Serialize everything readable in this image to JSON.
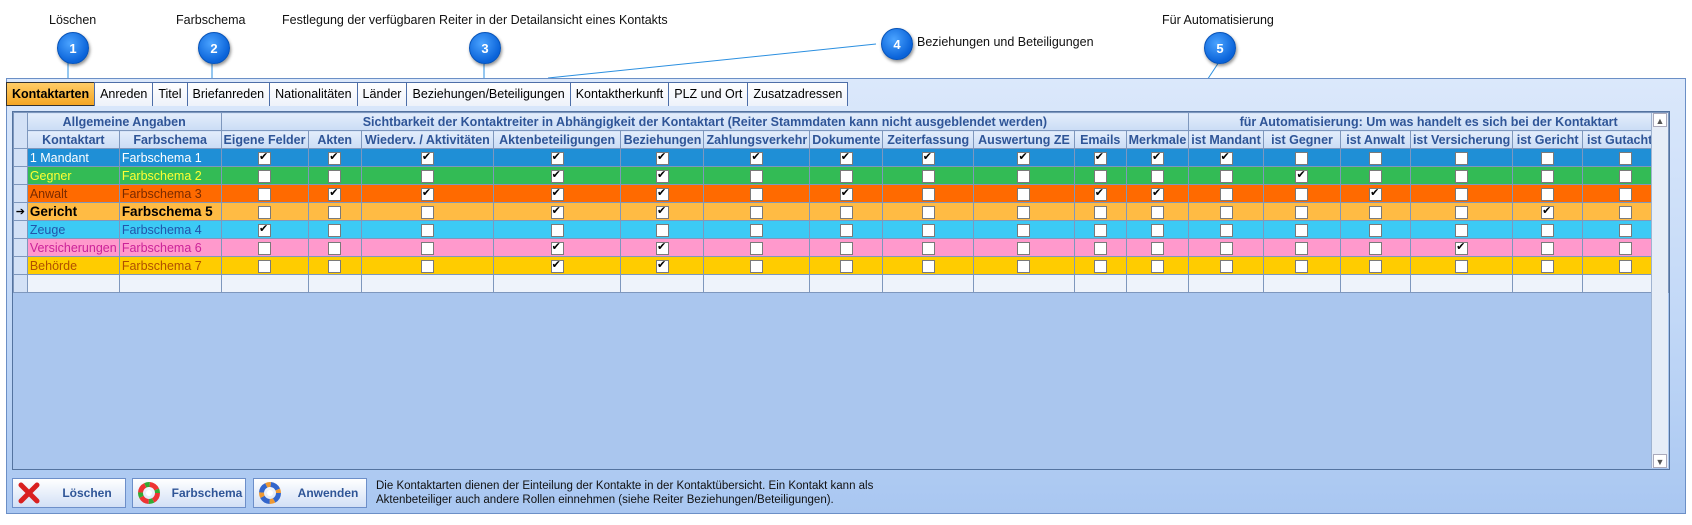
{
  "callouts": {
    "loeschen": "Löschen",
    "farbschema": "Farbschema",
    "reiter": "Festlegung der verfügbaren Reiter in der Detailansicht eines Kontakts",
    "beziehungen": "Beziehungen und Beteiligungen",
    "automatisierung": "Für Automatisierung",
    "badges": [
      "1",
      "2",
      "3",
      "4",
      "5"
    ]
  },
  "tabs": [
    "Kontaktarten",
    "Anreden",
    "Titel",
    "Briefanreden",
    "Nationalitäten",
    "Länder",
    "Beziehungen/Beteiligungen",
    "Kontaktherkunft",
    "PLZ und Ort",
    "Zusatzadressen"
  ],
  "groups": {
    "allgemein": "Allgemeine Angaben",
    "sichtbarkeit": "Sichtbarkeit der Kontaktreiter in Abhängigkeit der Kontaktart (Reiter Stammdaten kann nicht ausgeblendet werden)",
    "automatisierung": "für Automatisierung: Um was handelt es sich bei der Kontaktart"
  },
  "columns": [
    "Kontaktart",
    "Farbschema",
    "Eigene Felder",
    "Akten",
    "Wiederv. / Aktivitäten",
    "Aktenbeteiligungen",
    "Beziehungen",
    "Zahlungsverkehr",
    "Dokumente",
    "Zeiterfassung",
    "Auswertung ZE",
    "Emails",
    "Merkmale",
    "ist Mandant",
    "ist Gegner",
    "ist Anwalt",
    "ist Versicherung",
    "ist Gericht",
    "ist Gutachter"
  ],
  "rows": [
    {
      "kontaktart": "1 Mandant",
      "farbschema": "Farbschema 1",
      "bg": "#1f8fd6",
      "fg": "#ffffff",
      "current": false,
      "checks": [
        1,
        1,
        1,
        1,
        1,
        1,
        1,
        1,
        1,
        1,
        1,
        1,
        0,
        0,
        0,
        0,
        0
      ]
    },
    {
      "kontaktart": "Gegner",
      "farbschema": "Farbschema 2",
      "bg": "#33bb55",
      "fg": "#ffff33",
      "current": false,
      "checks": [
        0,
        0,
        0,
        1,
        1,
        0,
        0,
        0,
        0,
        0,
        0,
        0,
        1,
        0,
        0,
        0,
        0
      ]
    },
    {
      "kontaktart": "Anwalt",
      "farbschema": "Farbschema 3",
      "bg": "#ff6a00",
      "fg": "#7a2a00",
      "current": false,
      "checks": [
        0,
        1,
        1,
        1,
        1,
        0,
        1,
        0,
        0,
        1,
        1,
        0,
        0,
        1,
        0,
        0,
        0
      ]
    },
    {
      "kontaktart": "Gericht",
      "farbschema": "Farbschema 5",
      "bg": "#ffbb44",
      "fg": "#000000",
      "current": true,
      "checks": [
        0,
        0,
        0,
        1,
        1,
        0,
        0,
        0,
        0,
        0,
        0,
        0,
        0,
        0,
        0,
        1,
        0
      ]
    },
    {
      "kontaktart": "Zeuge",
      "farbschema": "Farbschema 4",
      "bg": "#3ccaf5",
      "fg": "#2255aa",
      "current": false,
      "checks": [
        1,
        0,
        0,
        0,
        0,
        0,
        0,
        0,
        0,
        0,
        0,
        0,
        0,
        0,
        0,
        0,
        0
      ]
    },
    {
      "kontaktart": "Versicherungen",
      "farbschema": "Farbschema 6",
      "bg": "#ff99cc",
      "fg": "#cc2299",
      "current": false,
      "checks": [
        0,
        0,
        0,
        1,
        1,
        0,
        0,
        0,
        0,
        0,
        0,
        0,
        0,
        0,
        1,
        0,
        0
      ]
    },
    {
      "kontaktart": "Behörde",
      "farbschema": "Farbschema 7",
      "bg": "#ffcc00",
      "fg": "#b05000",
      "current": false,
      "checks": [
        0,
        0,
        0,
        1,
        1,
        0,
        0,
        0,
        0,
        0,
        0,
        0,
        0,
        0,
        0,
        0,
        0
      ]
    }
  ],
  "buttons": {
    "loeschen": "Löschen",
    "farbschema": "Farbschema",
    "anwenden": "Anwenden"
  },
  "info_line1": "Die Kontaktarten dienen der Einteilung der Kontakte in der Kontaktübersicht. Ein Kontakt kann als",
  "info_line2": "Aktenbeteiliger auch andere Rollen einnehmen (siehe Reiter Beziehungen/Beteiligungen).",
  "icons": {
    "delete": "red-x-icon",
    "palette": "color-wheel-icon",
    "current_row": "row-pointer-arrow-icon"
  }
}
